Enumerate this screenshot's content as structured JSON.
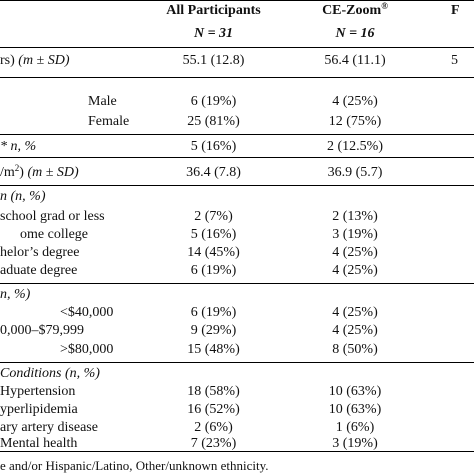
{
  "header": {
    "col_all": "All Participants",
    "col_cez": "CE-Zoom",
    "col_cez_sup": "®",
    "col_third": "F",
    "n_all": "N = 31",
    "n_cez": "N = 16"
  },
  "age": {
    "label_a": "rs) ",
    "label_b": "(m ± SD)",
    "all": "55.1 (12.8)",
    "cez": "56.4 (11.1)",
    "third": "5"
  },
  "sex": {
    "male": {
      "label": "Male",
      "all": "6 (19%)",
      "cez": "4 (25%)"
    },
    "female": {
      "label": "Female",
      "all": "25 (81%)",
      "cez": "12 (75%)"
    }
  },
  "eth": {
    "label": "* n, %",
    "all": "5 (16%)",
    "cez": "2 (12.5%)"
  },
  "bmi": {
    "label_a": "/m",
    "label_sup": "2",
    "label_b": ") ",
    "label_c": "(m ± SD)",
    "all": "36.4 (7.8)",
    "cez": "36.9 (5.7)"
  },
  "edu": {
    "header": "n (n, %)",
    "hs": {
      "label": "school grad or less",
      "all": "2 (7%)",
      "cez": "2 (13%)"
    },
    "some": {
      "label": "ome college",
      "all": "5 (16%)",
      "cez": "3 (19%)"
    },
    "bach": {
      "label": "helor’s degree",
      "all": "14 (45%)",
      "cez": "4 (25%)"
    },
    "grad": {
      "label": "aduate degree",
      "all": "6 (19%)",
      "cez": "4 (25%)"
    }
  },
  "income": {
    "header": "n, %)",
    "r1": {
      "label": "<$40,000",
      "all": "6 (19%)",
      "cez": "4 (25%)"
    },
    "r2": {
      "label": "0,000–$79,999",
      "all": "9 (29%)",
      "cez": "4 (25%)"
    },
    "r3": {
      "label": ">$80,000",
      "all": "15 (48%)",
      "cez": "8 (50%)"
    }
  },
  "conditions": {
    "header": "Conditions (n, %)",
    "htn": {
      "label": "Hypertension",
      "all": "18 (58%)",
      "cez": "10 (63%)"
    },
    "hld": {
      "label": "yperlipidemia",
      "all": "16 (52%)",
      "cez": "10 (63%)"
    },
    "cad": {
      "label": "ary artery disease",
      "all": "2 (6%)",
      "cez": "1 (6%)"
    },
    "mh": {
      "label": "Mental health",
      "all": "7 (23%)",
      "cez": "3 (19%)"
    }
  },
  "footnote": "e and/or Hispanic/Latino, Other/unknown ethnicity."
}
